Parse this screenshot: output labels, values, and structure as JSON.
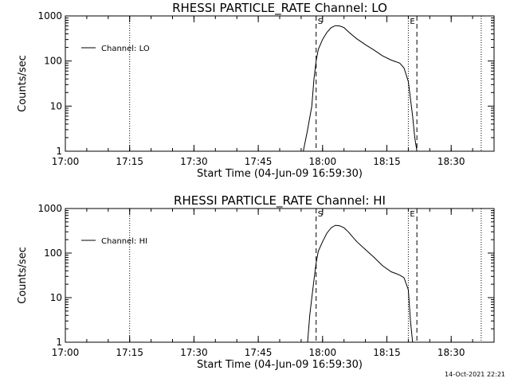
{
  "footer": {
    "timestamp": "14-Oct-2021 22:21"
  },
  "chart_data": [
    {
      "type": "line",
      "title": "RHESSI PARTICLE_RATE Channel: LO",
      "xlabel": "Start Time (04-Jun-09 16:59:30)",
      "ylabel": "Counts/sec",
      "yscale": "log",
      "ylim": [
        1,
        1000
      ],
      "xlim": [
        "17:00",
        "18:40"
      ],
      "xticks": [
        "17:00",
        "17:15",
        "17:30",
        "17:45",
        "18:00",
        "18:15",
        "18:30"
      ],
      "yticks": [
        "1",
        "10",
        "100",
        "1000"
      ],
      "legend": "top-left",
      "series": [
        {
          "name": "Channel: LO",
          "color": "#000000",
          "x": [
            "17:55:30",
            "17:56:30",
            "17:57:30",
            "17:58:00",
            "17:58:30",
            "17:59:00",
            "18:00:00",
            "18:01:00",
            "18:02:00",
            "18:03:00",
            "18:04:00",
            "18:05:00",
            "18:06:00",
            "18:07:00",
            "18:08:00",
            "18:10:00",
            "18:12:00",
            "18:14:00",
            "18:16:00",
            "18:18:00",
            "18:19:00",
            "18:20:00",
            "18:21:00",
            "18:21:30",
            "18:22:00"
          ],
          "y": [
            1,
            3,
            10,
            40,
            100,
            180,
            300,
            430,
            550,
            610,
            600,
            550,
            450,
            370,
            310,
            230,
            175,
            130,
            105,
            90,
            70,
            35,
            6,
            2,
            1
          ]
        }
      ],
      "vlines": [
        {
          "x": "17:15",
          "style": "dotted"
        },
        {
          "x": "17:58:30",
          "style": "dashed",
          "label": "S"
        },
        {
          "x": "18:20:00",
          "style": "dotted",
          "label": "E"
        },
        {
          "x": "18:22:00",
          "style": "dashed"
        },
        {
          "x": "18:37:00",
          "style": "dotted"
        }
      ]
    },
    {
      "type": "line",
      "title": "RHESSI PARTICLE_RATE Channel: HI",
      "xlabel": "Start Time (04-Jun-09 16:59:30)",
      "ylabel": "Counts/sec",
      "yscale": "log",
      "ylim": [
        1,
        1000
      ],
      "xlim": [
        "17:00",
        "18:40"
      ],
      "xticks": [
        "17:00",
        "17:15",
        "17:30",
        "17:45",
        "18:00",
        "18:15",
        "18:30"
      ],
      "yticks": [
        "1",
        "10",
        "100",
        "1000"
      ],
      "legend": "top-left",
      "series": [
        {
          "name": "Channel: HI",
          "color": "#000000",
          "x": [
            "17:56:30",
            "17:57:00",
            "17:57:30",
            "17:58:00",
            "17:58:30",
            "17:59:00",
            "18:00:00",
            "18:01:00",
            "18:02:00",
            "18:03:00",
            "18:04:00",
            "18:05:00",
            "18:06:00",
            "18:07:00",
            "18:08:00",
            "18:10:00",
            "18:12:00",
            "18:14:00",
            "18:16:00",
            "18:17:00",
            "18:18:00",
            "18:19:00",
            "18:20:00",
            "18:20:30",
            "18:21:00"
          ],
          "y": [
            1,
            4,
            10,
            25,
            60,
            110,
            180,
            280,
            370,
            420,
            410,
            370,
            300,
            230,
            180,
            120,
            80,
            52,
            38,
            35,
            32,
            28,
            15,
            3,
            1
          ]
        }
      ],
      "vlines": [
        {
          "x": "17:15",
          "style": "dotted"
        },
        {
          "x": "17:58:30",
          "style": "dashed",
          "label": "S"
        },
        {
          "x": "18:20:00",
          "style": "dotted",
          "label": "E"
        },
        {
          "x": "18:22:00",
          "style": "dashed"
        },
        {
          "x": "18:37:00",
          "style": "dotted"
        }
      ]
    }
  ]
}
